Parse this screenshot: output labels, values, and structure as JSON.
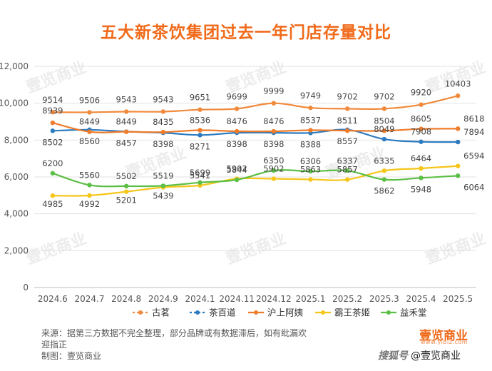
{
  "chart_data": {
    "type": "line",
    "title": "五大新茶饮集团过去一年门店存量对比",
    "categories": [
      "2024.6",
      "2024.7",
      "2024.8",
      "2024.9",
      "2024.1",
      "2024.11",
      "2024.12",
      "2025.1",
      "2025.2",
      "2025.3",
      "2025.4",
      "2025.5"
    ],
    "ylim": [
      0,
      12000
    ],
    "yticks": [
      "0",
      "2,000",
      "4,000",
      "6,000",
      "8,000",
      "10,000",
      "12,000"
    ],
    "ytick_values": [
      0,
      2000,
      4000,
      6000,
      8000,
      10000,
      12000
    ],
    "grid": "horizontal",
    "legend_position": "bottom",
    "series": [
      {
        "name": "古茗",
        "color": "#f08a3c",
        "dashed": true,
        "values": [
          9514,
          9506,
          9543,
          9543,
          9651,
          9699,
          9999,
          9749,
          9702,
          9702,
          9920,
          10403
        ]
      },
      {
        "name": "茶百道",
        "color": "#2c7bc0",
        "dashed": true,
        "values": [
          8502,
          8560,
          8457,
          8398,
          8271,
          8398,
          8398,
          8388,
          8557,
          8049,
          7908,
          7894
        ]
      },
      {
        "name": "沪上阿姨",
        "color": "#ef7c2a",
        "dashed": false,
        "values": [
          8939,
          8449,
          8449,
          8435,
          8536,
          8476,
          8476,
          8537,
          8511,
          8504,
          8605,
          8618
        ]
      },
      {
        "name": "霸王茶姬",
        "color": "#f5c518",
        "dashed": false,
        "values": [
          4985,
          4992,
          5201,
          5439,
          5541,
          5902,
          5902,
          5863,
          5857,
          6335,
          6464,
          6594
        ]
      },
      {
        "name": "益禾堂",
        "color": "#5cbf45",
        "dashed": false,
        "values": [
          6200,
          5560,
          5502,
          5519,
          5699,
          5844,
          6350,
          6306,
          6337,
          5862,
          5948,
          6064
        ]
      }
    ]
  },
  "watermark": "壹览商业",
  "source_line1": "来源：据第三方数据不完全整理，部分品牌或有数据滞后，如有纰漏欢",
  "source_line2": "迎指正",
  "source_line3": "制图：壹览商业",
  "brand_logo": "壹览商业",
  "brand_url": "www.ylbiz.com",
  "watermark_prefix": "搜狐号",
  "watermark_name": "@壹览商业"
}
